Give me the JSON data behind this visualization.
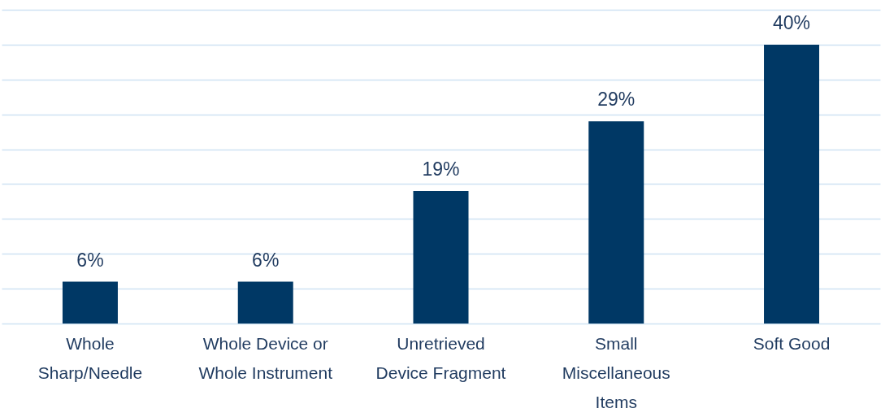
{
  "chart_data": {
    "type": "bar",
    "categories": [
      "Whole\nSharp/Needle",
      "Whole Device or\nWhole Instrument",
      "Unretrieved\nDevice Fragment",
      "Small\nMiscellaneous\nItems",
      "Soft Good"
    ],
    "values": [
      6,
      6,
      19,
      29,
      40
    ],
    "value_labels": [
      "6%",
      "6%",
      "19%",
      "29%",
      "40%"
    ],
    "color": "#003865",
    "ylim": [
      0,
      45
    ],
    "yticks": [
      {
        "value": 0,
        "label": null
      },
      {
        "value": 5,
        "label": null
      },
      {
        "value": 10,
        "label": null
      },
      {
        "value": 15,
        "label": null
      },
      {
        "value": 20,
        "label": null
      },
      {
        "value": 25,
        "label": null
      },
      {
        "value": 30,
        "label": null
      },
      {
        "value": 35,
        "label": null
      },
      {
        "value": 40,
        "label": null
      },
      {
        "value": 45,
        "label": null
      }
    ],
    "grid": "y",
    "tick_labels": "x"
  }
}
